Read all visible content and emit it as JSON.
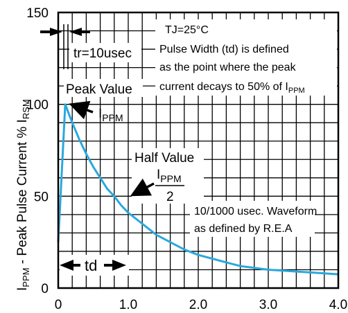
{
  "chart_data": {
    "type": "line",
    "xlabel": "",
    "ylabel": "IPPM - Peak Pulse Current % IRSM",
    "ylabel_parts": {
      "main": "I",
      "sub1": "PPM",
      "mid": " - Peak Pulse Current % I",
      "sub2": "RSM"
    },
    "xlim": [
      0,
      4.0
    ],
    "ylim": [
      0,
      150
    ],
    "x_ticks": [
      "0",
      "1.0",
      "2.0",
      "3.0",
      "4.0"
    ],
    "x_tick_values": [
      0,
      1.0,
      2.0,
      3.0,
      4.0
    ],
    "y_ticks": [
      "0",
      "50",
      "100",
      "150"
    ],
    "y_tick_values": [
      0,
      50,
      100,
      150
    ],
    "grid": true,
    "series": [
      {
        "color": "#2aa8dc",
        "x": [
          0.0,
          0.1,
          0.2,
          0.3,
          0.4,
          0.5,
          0.6,
          0.7,
          0.8,
          0.9,
          1.0,
          1.2,
          1.4,
          1.6,
          1.8,
          2.0,
          2.2,
          2.4,
          2.6,
          2.8,
          3.0,
          3.2,
          3.4,
          3.6,
          3.8,
          4.0
        ],
        "y": [
          25,
          100,
          90,
          81,
          73,
          66,
          60,
          54,
          50,
          45,
          41,
          35,
          29,
          25,
          21,
          18,
          16,
          14,
          12,
          11,
          10,
          9.5,
          9,
          8.5,
          8,
          7.5
        ]
      }
    ],
    "annotations": {
      "tj": "TJ=25°C",
      "pulse_line1": "Pulse Width (td) is defined",
      "pulse_line2": "as the point where the peak",
      "pulse_line3_main": "current decays to 50% of I",
      "pulse_line3_sub": "PPM",
      "tr": "tr=10usec",
      "peak_value": "Peak Value",
      "ippm_main": "I",
      "ippm_sub": "PPM",
      "half_value": "Half Value",
      "frac_num_main": "I",
      "frac_num_sub": "PPM",
      "frac_den": "2",
      "waveform_line1": "10/1000 usec. Waveform",
      "waveform_line2": "as defined by R.E.A",
      "td": "td"
    }
  }
}
